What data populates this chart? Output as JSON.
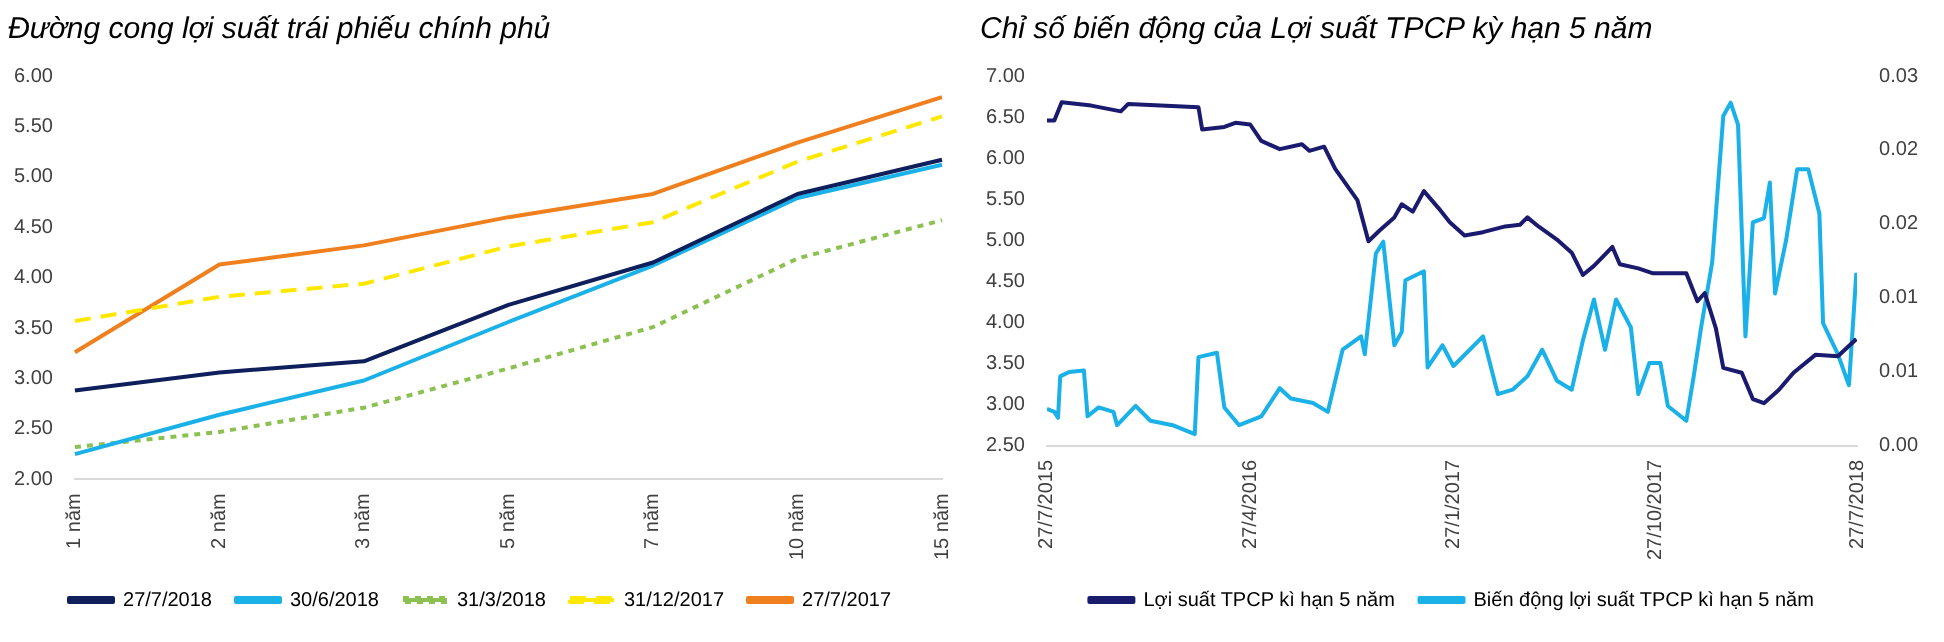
{
  "chart_data": [
    {
      "type": "line",
      "title": "Đường cong lợi suất trái phiếu chính phủ",
      "categories": [
        "1 năm",
        "2 năm",
        "3 năm",
        "5 năm",
        "7 năm",
        "10 năm",
        "15 năm"
      ],
      "series": [
        {
          "name": "27/7/2018",
          "color": "#0e1f5b",
          "line_style": "solid",
          "values": [
            2.88,
            3.06,
            3.17,
            3.73,
            4.15,
            4.83,
            5.17
          ]
        },
        {
          "name": "30/6/2018",
          "color": "#1ab0e8",
          "line_style": "solid",
          "values": [
            2.25,
            2.64,
            2.98,
            3.56,
            4.12,
            4.79,
            5.12
          ]
        },
        {
          "name": "31/3/2018",
          "color": "#8cc152",
          "line_style": "dotted",
          "values": [
            2.32,
            2.47,
            2.71,
            3.1,
            3.51,
            4.19,
            4.57
          ]
        },
        {
          "name": "31/12/2017",
          "color": "#ffe800",
          "line_style": "dashed",
          "values": [
            3.57,
            3.81,
            3.94,
            4.31,
            4.55,
            5.15,
            5.6
          ]
        },
        {
          "name": "27/7/2017",
          "color": "#f07f1d",
          "line_style": "solid",
          "values": [
            3.26,
            4.13,
            4.32,
            4.6,
            4.83,
            5.34,
            5.79
          ]
        }
      ],
      "ylim": [
        2,
        6
      ],
      "yticks": [
        {
          "value": 2,
          "label": "2.00"
        },
        {
          "value": 2.5,
          "label": "2.50"
        },
        {
          "value": 3,
          "label": "3.00"
        },
        {
          "value": 3.5,
          "label": "3.50"
        },
        {
          "value": 4,
          "label": "4.00"
        },
        {
          "value": 4.5,
          "label": "4.50"
        },
        {
          "value": 5,
          "label": "5.00"
        },
        {
          "value": 5.5,
          "label": "5.50"
        },
        {
          "value": 6,
          "label": "6.00"
        }
      ],
      "grid": false,
      "legend": "bottom",
      "marker": "none"
    },
    {
      "type": "line",
      "title": "Chỉ số biến động của Lợi suất TPCP kỳ hạn 5 năm",
      "series": [
        {
          "name": "Lợi suất TPCP kì hạn 5 năm",
          "color": "#1a1a6e",
          "x": [
            "2015-07-27",
            "2015-08-06",
            "2015-08-16",
            "2015-09-25",
            "2015-11-04",
            "2015-11-14",
            "2016-02-17",
            "2016-02-22",
            "2016-03-23",
            "2016-04-07",
            "2016-04-27",
            "2016-05-12",
            "2016-06-06",
            "2016-07-06",
            "2016-07-16",
            "2016-08-05",
            "2016-08-20",
            "2016-09-19",
            "2016-10-04",
            "2016-10-19",
            "2016-11-08",
            "2016-11-18",
            "2016-12-03",
            "2016-12-18",
            "2017-01-07",
            "2017-01-22",
            "2017-02-11",
            "2017-03-08",
            "2017-04-07",
            "2017-04-27",
            "2017-05-07",
            "2017-05-22",
            "2017-06-16",
            "2017-07-06",
            "2017-07-21",
            "2017-08-05",
            "2017-08-30",
            "2017-09-09",
            "2017-10-04",
            "2017-10-24",
            "2017-12-08",
            "2017-12-23",
            "2018-01-02",
            "2018-01-17",
            "2018-01-27",
            "2018-02-21",
            "2018-03-08",
            "2018-03-23",
            "2018-04-12",
            "2018-05-02",
            "2018-06-01",
            "2018-07-01",
            "2018-07-26"
          ],
          "values": [
            6.46,
            6.46,
            6.68,
            6.64,
            6.57,
            6.66,
            6.62,
            6.35,
            6.38,
            6.43,
            6.41,
            6.21,
            6.11,
            6.17,
            6.09,
            6.14,
            5.87,
            5.49,
            4.99,
            5.12,
            5.28,
            5.44,
            5.35,
            5.6,
            5.39,
            5.22,
            5.06,
            5.1,
            5.17,
            5.19,
            5.28,
            5.17,
            5.01,
            4.85,
            4.58,
            4.69,
            4.92,
            4.71,
            4.66,
            4.6,
            4.6,
            4.26,
            4.36,
            3.93,
            3.45,
            3.39,
            3.07,
            3.02,
            3.18,
            3.39,
            3.61,
            3.59,
            3.8
          ]
        },
        {
          "name": "Biến động lợi suất TPCP kì hạn 5 năm",
          "color": "#1ab0e8",
          "axis": "y2",
          "x": [
            "2015-07-27",
            "2015-08-06",
            "2015-08-11",
            "2015-08-14",
            "2015-08-26",
            "2015-09-15",
            "2015-09-20",
            "2015-10-05",
            "2015-10-25",
            "2015-10-30",
            "2015-11-24",
            "2015-12-14",
            "2016-01-13",
            "2016-02-12",
            "2016-02-17",
            "2016-03-13",
            "2016-03-23",
            "2016-04-12",
            "2016-05-12",
            "2016-06-06",
            "2016-06-21",
            "2016-07-21",
            "2016-08-10",
            "2016-08-30",
            "2016-09-24",
            "2016-09-29",
            "2016-10-14",
            "2016-10-24",
            "2016-11-08",
            "2016-11-18",
            "2016-11-23",
            "2016-12-18",
            "2016-12-23",
            "2017-01-12",
            "2017-01-27",
            "2017-03-08",
            "2017-03-28",
            "2017-04-17",
            "2017-05-07",
            "2017-05-27",
            "2017-06-16",
            "2017-07-06",
            "2017-07-21",
            "2017-08-05",
            "2017-08-20",
            "2017-09-04",
            "2017-09-24",
            "2017-10-04",
            "2017-10-19",
            "2017-11-03",
            "2017-11-13",
            "2017-12-08",
            "2017-12-18",
            "2017-12-28",
            "2018-01-12",
            "2018-01-27",
            "2018-02-06",
            "2018-02-16",
            "2018-02-26",
            "2018-03-08",
            "2018-03-23",
            "2018-03-31",
            "2018-04-07",
            "2018-04-22",
            "2018-05-07",
            "2018-05-22",
            "2018-06-06",
            "2018-06-11",
            "2018-07-01",
            "2018-07-16",
            "2018-07-26"
          ],
          "values": [
            0.0025,
            0.0023,
            0.0019,
            0.0047,
            0.005,
            0.0051,
            0.002,
            0.0026,
            0.0023,
            0.0014,
            0.0027,
            0.0017,
            0.0014,
            0.0008,
            0.006,
            0.0063,
            0.0026,
            0.0014,
            0.002,
            0.0039,
            0.0032,
            0.0029,
            0.0023,
            0.0065,
            0.0074,
            0.0062,
            0.013,
            0.0138,
            0.0068,
            0.0077,
            0.0112,
            0.0118,
            0.0053,
            0.0068,
            0.0054,
            0.0074,
            0.0035,
            0.0038,
            0.0047,
            0.0065,
            0.0044,
            0.0038,
            0.0071,
            0.0099,
            0.0065,
            0.0099,
            0.008,
            0.0035,
            0.0056,
            0.0056,
            0.0027,
            0.0017,
            0.0047,
            0.008,
            0.0124,
            0.0223,
            0.0232,
            0.0217,
            0.0074,
            0.0151,
            0.0154,
            0.0178,
            0.0103,
            0.0139,
            0.0187,
            0.0187,
            0.0157,
            0.0083,
            0.0062,
            0.0041,
            0.0117
          ]
        }
      ],
      "xlim": [
        "2015-07-27",
        "2018-07-27"
      ],
      "xticks": [
        {
          "value": "2015-07-27",
          "label": "27/7/2015"
        },
        {
          "value": "2016-04-27",
          "label": "27/4/2016"
        },
        {
          "value": "2017-01-27",
          "label": "27/1/2017"
        },
        {
          "value": "2017-10-27",
          "label": "27/10/2017"
        },
        {
          "value": "2018-07-27",
          "label": "27/7/2018"
        }
      ],
      "ylim": [
        2.5,
        7
      ],
      "yticks": [
        {
          "value": 2.5,
          "label": "2.50"
        },
        {
          "value": 3,
          "label": "3.00"
        },
        {
          "value": 3.5,
          "label": "3.50"
        },
        {
          "value": 4,
          "label": "4.00"
        },
        {
          "value": 4.5,
          "label": "4.50"
        },
        {
          "value": 5,
          "label": "5.00"
        },
        {
          "value": 5.5,
          "label": "5.50"
        },
        {
          "value": 6,
          "label": "6.00"
        },
        {
          "value": 6.5,
          "label": "6.50"
        },
        {
          "value": 7,
          "label": "7.00"
        }
      ],
      "y2lim": [
        0,
        0.025
      ],
      "y2ticks": [
        {
          "value": 0,
          "label": "0.00"
        },
        {
          "value": 0.005,
          "label": "0.01"
        },
        {
          "value": 0.01,
          "label": "0.01"
        },
        {
          "value": 0.015,
          "label": "0.02"
        },
        {
          "value": 0.02,
          "label": "0.02"
        },
        {
          "value": 0.025,
          "label": "0.03"
        }
      ],
      "grid": false,
      "legend": "bottom",
      "marker": "none"
    }
  ]
}
